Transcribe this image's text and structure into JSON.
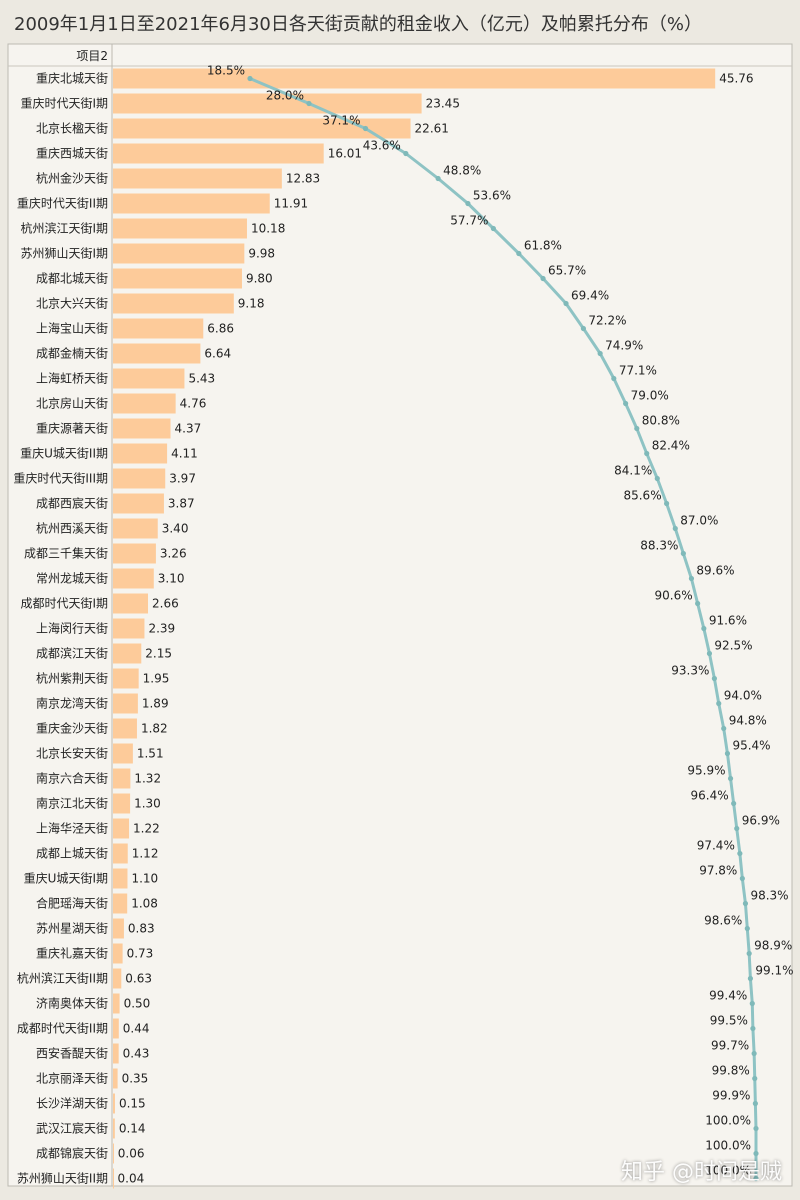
{
  "title": "2009年1月1日至2021年6月30日各天街贡献的租金收入（亿元）及帕累托分布（%）",
  "header_label": "项目2",
  "watermark": "知乎 @时间是贼",
  "colors": {
    "bar": "#fdcb9a",
    "line": "#8ec3c4",
    "marker": "#7fb9b9",
    "text": "#222222"
  },
  "chart_data": {
    "type": "bar",
    "orientation": "horizontal",
    "title": "2009年1月1日至2021年6月30日各天街贡献的租金收入（亿元）及帕累托分布（%）",
    "header": "项目2",
    "categories": [
      "重庆北城天街",
      "重庆时代天街I期",
      "北京长楹天街",
      "重庆西城天街",
      "杭州金沙天街",
      "重庆时代天街II期",
      "杭州滨江天街I期",
      "苏州狮山天街I期",
      "成都北城天街",
      "北京大兴天街",
      "上海宝山天街",
      "成都金楠天街",
      "上海虹桥天街",
      "北京房山天街",
      "重庆源著天街",
      "重庆U城天街II期",
      "重庆时代天街III期",
      "成都西宸天街",
      "杭州西溪天街",
      "成都三千集天街",
      "常州龙城天街",
      "成都时代天街I期",
      "上海闵行天街",
      "成都滨江天街",
      "杭州紫荆天街",
      "南京龙湾天街",
      "重庆金沙天街",
      "北京长安天街",
      "南京六合天街",
      "南京江北天街",
      "上海华泾天街",
      "成都上城天街",
      "重庆U城天街I期",
      "合肥瑶海天街",
      "苏州星湖天街",
      "重庆礼嘉天街",
      "杭州滨江天街II期",
      "济南奥体天街",
      "成都时代天街II期",
      "西安香醍天街",
      "北京丽泽天街",
      "长沙洋湖天街",
      "武汉江宸天街",
      "成都锦宸天街",
      "苏州狮山天街II期"
    ],
    "series": [
      {
        "type": "bar",
        "values": [
          45.76,
          23.45,
          22.61,
          16.01,
          12.83,
          11.91,
          10.18,
          9.98,
          9.8,
          9.18,
          6.86,
          6.64,
          5.43,
          4.76,
          4.37,
          4.11,
          3.97,
          3.87,
          3.4,
          3.26,
          3.1,
          2.66,
          2.39,
          2.15,
          1.95,
          1.89,
          1.82,
          1.51,
          1.32,
          1.3,
          1.22,
          1.12,
          1.1,
          1.08,
          0.83,
          0.73,
          0.63,
          0.5,
          0.44,
          0.43,
          0.35,
          0.15,
          0.14,
          0.06,
          0.04
        ],
        "labels": [
          "45.76",
          "23.45",
          "22.61",
          "16.01",
          "12.83",
          "11.91",
          "10.18",
          "9.98",
          "9.80",
          "9.18",
          "6.86",
          "6.64",
          "5.43",
          "4.76",
          "4.37",
          "4.11",
          "3.97",
          "3.87",
          "3.40",
          "3.26",
          "3.10",
          "2.66",
          "2.39",
          "2.15",
          "1.95",
          "1.89",
          "1.82",
          "1.51",
          "1.32",
          "1.30",
          "1.22",
          "1.12",
          "1.10",
          "1.08",
          "0.83",
          "0.73",
          "0.63",
          "0.50",
          "0.44",
          "0.43",
          "0.35",
          "0.15",
          "0.14",
          "0.06",
          "0.04"
        ]
      },
      {
        "type": "line",
        "values": [
          18.5,
          28.0,
          37.1,
          43.6,
          48.8,
          53.6,
          57.7,
          61.8,
          65.7,
          69.4,
          72.2,
          74.9,
          77.1,
          79.0,
          80.8,
          82.4,
          84.1,
          85.6,
          87.0,
          88.3,
          89.6,
          90.6,
          91.6,
          92.5,
          93.3,
          94.0,
          94.8,
          95.4,
          95.9,
          96.4,
          96.9,
          97.4,
          97.8,
          98.3,
          98.6,
          98.9,
          99.1,
          99.4,
          99.5,
          99.7,
          99.8,
          99.9,
          100.0,
          100.0,
          100.0
        ],
        "labels": [
          "18.5%",
          "28.0%",
          "37.1%",
          "43.6%",
          "48.8%",
          "53.6%",
          "57.7%",
          "61.8%",
          "65.7%",
          "69.4%",
          "72.2%",
          "74.9%",
          "77.1%",
          "79.0%",
          "80.8%",
          "82.4%",
          "84.1%",
          "85.6%",
          "87.0%",
          "88.3%",
          "89.6%",
          "90.6%",
          "91.6%",
          "92.5%",
          "93.3%",
          "94.0%",
          "94.8%",
          "95.4%",
          "95.9%",
          "96.4%",
          "96.9%",
          "97.4%",
          "97.8%",
          "98.3%",
          "98.6%",
          "98.9%",
          "99.1%",
          "99.4%",
          "99.5%",
          "99.7%",
          "99.8%",
          "99.9%",
          "100.0%",
          "100.0%",
          "100.0%"
        ],
        "label_side": [
          "left",
          "left",
          "left",
          "left",
          "right",
          "right",
          "left",
          "right",
          "right",
          "right",
          "right",
          "right",
          "right",
          "right",
          "right",
          "right",
          "left",
          "left",
          "right",
          "left",
          "right",
          "left",
          "right",
          "right",
          "left",
          "right",
          "right",
          "right",
          "left",
          "left",
          "right",
          "left",
          "left",
          "right",
          "left",
          "right",
          "right",
          "left",
          "left",
          "left",
          "left",
          "left",
          "left",
          "left",
          "left"
        ]
      }
    ],
    "grid": false,
    "legend": "none"
  }
}
